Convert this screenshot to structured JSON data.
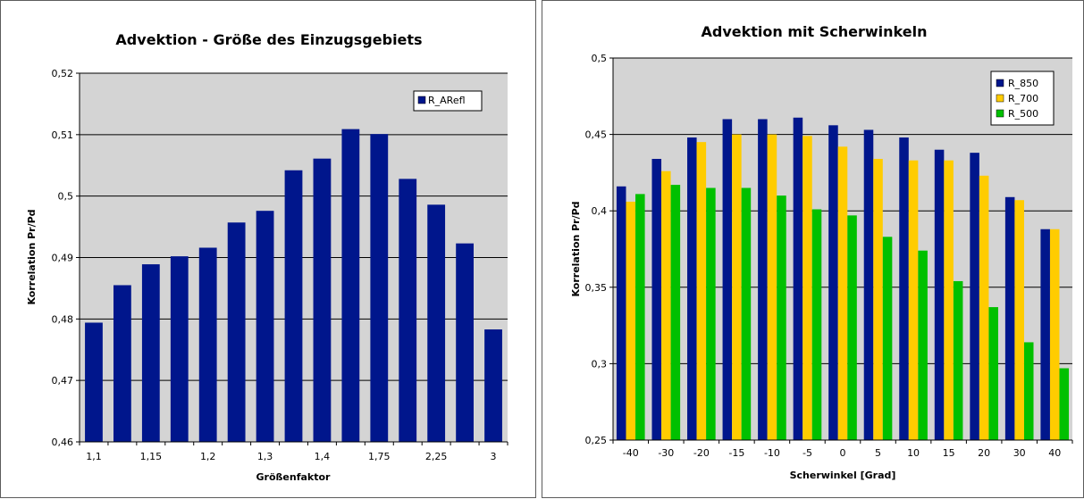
{
  "chart_data": [
    {
      "type": "bar",
      "title": "Advektion - Größe des Einzugsgebiets",
      "xlabel": "Größenfaktor",
      "ylabel": "Korrelation Pr/Pd",
      "ylim": [
        0.46,
        0.52
      ],
      "y_ticks": [
        "0,46",
        "0,47",
        "0,48",
        "0,49",
        "0,5",
        "0,51",
        "0,52"
      ],
      "categories_shown": [
        "1,1",
        "1,15",
        "1,2",
        "1,3",
        "1,4",
        "1,75",
        "2,25",
        "3"
      ],
      "grid": "horizontal",
      "legend_position": "top-right",
      "colors": {
        "plot_bg": "#d4d4d4",
        "R_ARefl": "#00168c"
      },
      "series": [
        {
          "name": "R_ARefl",
          "values": [
            0.4794,
            0.4855,
            0.4889,
            0.4902,
            0.4916,
            0.4957,
            0.4976,
            0.5042,
            0.5061,
            0.5109,
            0.5101,
            0.5028,
            0.4986,
            0.4923,
            0.4783
          ]
        }
      ]
    },
    {
      "type": "bar",
      "title": "Advektion mit Scherwinkeln",
      "xlabel": "Scherwinkel [Grad]",
      "ylabel": "Korrelation Pr/Pd",
      "ylim": [
        0.25,
        0.5
      ],
      "y_ticks": [
        "0,25",
        "0,3",
        "0,35",
        "0,4",
        "0,45",
        "0,5"
      ],
      "categories": [
        "-40",
        "-30",
        "-20",
        "-15",
        "-10",
        "-5",
        "0",
        "5",
        "10",
        "15",
        "20",
        "30",
        "40"
      ],
      "grid": "horizontal",
      "legend_position": "top-right",
      "colors": {
        "plot_bg": "#d4d4d4",
        "R_850": "#00168c",
        "R_700": "#ffcc00",
        "R_500": "#00c000"
      },
      "series": [
        {
          "name": "R_850",
          "values": [
            0.416,
            0.434,
            0.448,
            0.46,
            0.46,
            0.461,
            0.456,
            0.453,
            0.448,
            0.44,
            0.438,
            0.409,
            0.388
          ]
        },
        {
          "name": "R_700",
          "values": [
            0.406,
            0.426,
            0.445,
            0.45,
            0.45,
            0.449,
            0.442,
            0.434,
            0.433,
            0.433,
            0.423,
            0.407,
            0.388
          ]
        },
        {
          "name": "R_500",
          "values": [
            0.411,
            0.417,
            0.415,
            0.415,
            0.41,
            0.401,
            0.397,
            0.383,
            0.374,
            0.354,
            0.337,
            0.314,
            0.297
          ]
        }
      ]
    }
  ]
}
